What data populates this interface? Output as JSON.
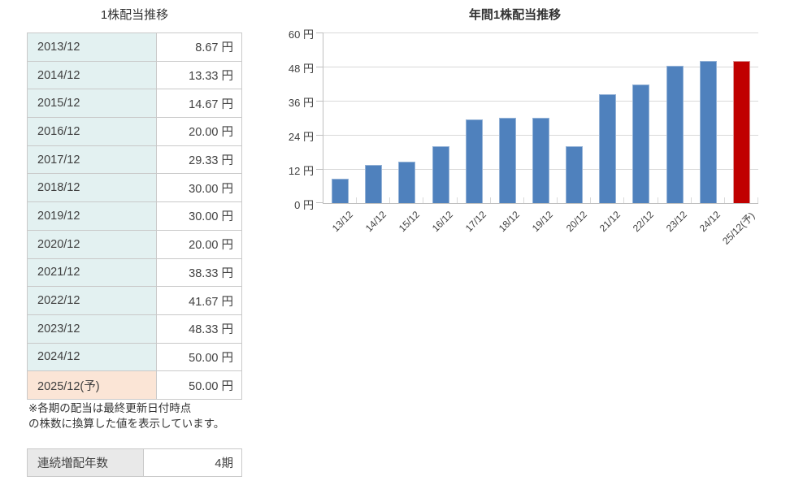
{
  "table": {
    "title": "1株配当推移",
    "rows": [
      {
        "period": "2013/12",
        "value": "8.67 円",
        "forecast": false
      },
      {
        "period": "2014/12",
        "value": "13.33 円",
        "forecast": false
      },
      {
        "period": "2015/12",
        "value": "14.67 円",
        "forecast": false
      },
      {
        "period": "2016/12",
        "value": "20.00 円",
        "forecast": false
      },
      {
        "period": "2017/12",
        "value": "29.33 円",
        "forecast": false
      },
      {
        "period": "2018/12",
        "value": "30.00 円",
        "forecast": false
      },
      {
        "period": "2019/12",
        "value": "30.00 円",
        "forecast": false
      },
      {
        "period": "2020/12",
        "value": "20.00 円",
        "forecast": false
      },
      {
        "period": "2021/12",
        "value": "38.33 円",
        "forecast": false
      },
      {
        "period": "2022/12",
        "value": "41.67 円",
        "forecast": false
      },
      {
        "period": "2023/12",
        "value": "48.33 円",
        "forecast": false
      },
      {
        "period": "2024/12",
        "value": "50.00 円",
        "forecast": false
      },
      {
        "period": "2025/12(予)",
        "value": "50.00 円",
        "forecast": true
      }
    ],
    "note_lines": [
      "※各期の配当は最終更新日付時点",
      "の株数に換算した値を表示しています。"
    ]
  },
  "streak": {
    "label": "連続増配年数",
    "value": "4期"
  },
  "chart_data": {
    "type": "bar",
    "title": "年間1株配当推移",
    "categories": [
      "13/12",
      "14/12",
      "15/12",
      "16/12",
      "17/12",
      "18/12",
      "19/12",
      "20/12",
      "21/12",
      "22/12",
      "23/12",
      "24/12",
      "25/12(予)"
    ],
    "values": [
      8.67,
      13.33,
      14.67,
      20.0,
      29.33,
      30.0,
      30.0,
      20.0,
      38.33,
      41.67,
      48.33,
      50.0,
      50.0
    ],
    "unit": "円",
    "yticks": [
      0,
      12,
      24,
      36,
      48,
      60
    ],
    "ylim": [
      0,
      60
    ],
    "grid": true,
    "legend": "none",
    "bar_color": "#4f81bd",
    "forecast_bar_color": "#c00000",
    "forecast_index": 12
  },
  "colors": {
    "label_cell_bg": "#e3f1f1",
    "forecast_cell_bg": "#fbe5d6",
    "streak_label_bg": "#e9e9e9",
    "table_border": "#c9c9c9",
    "gridline": "#d9d9d9",
    "axis": "#c0c0c0",
    "text": "#404040"
  }
}
